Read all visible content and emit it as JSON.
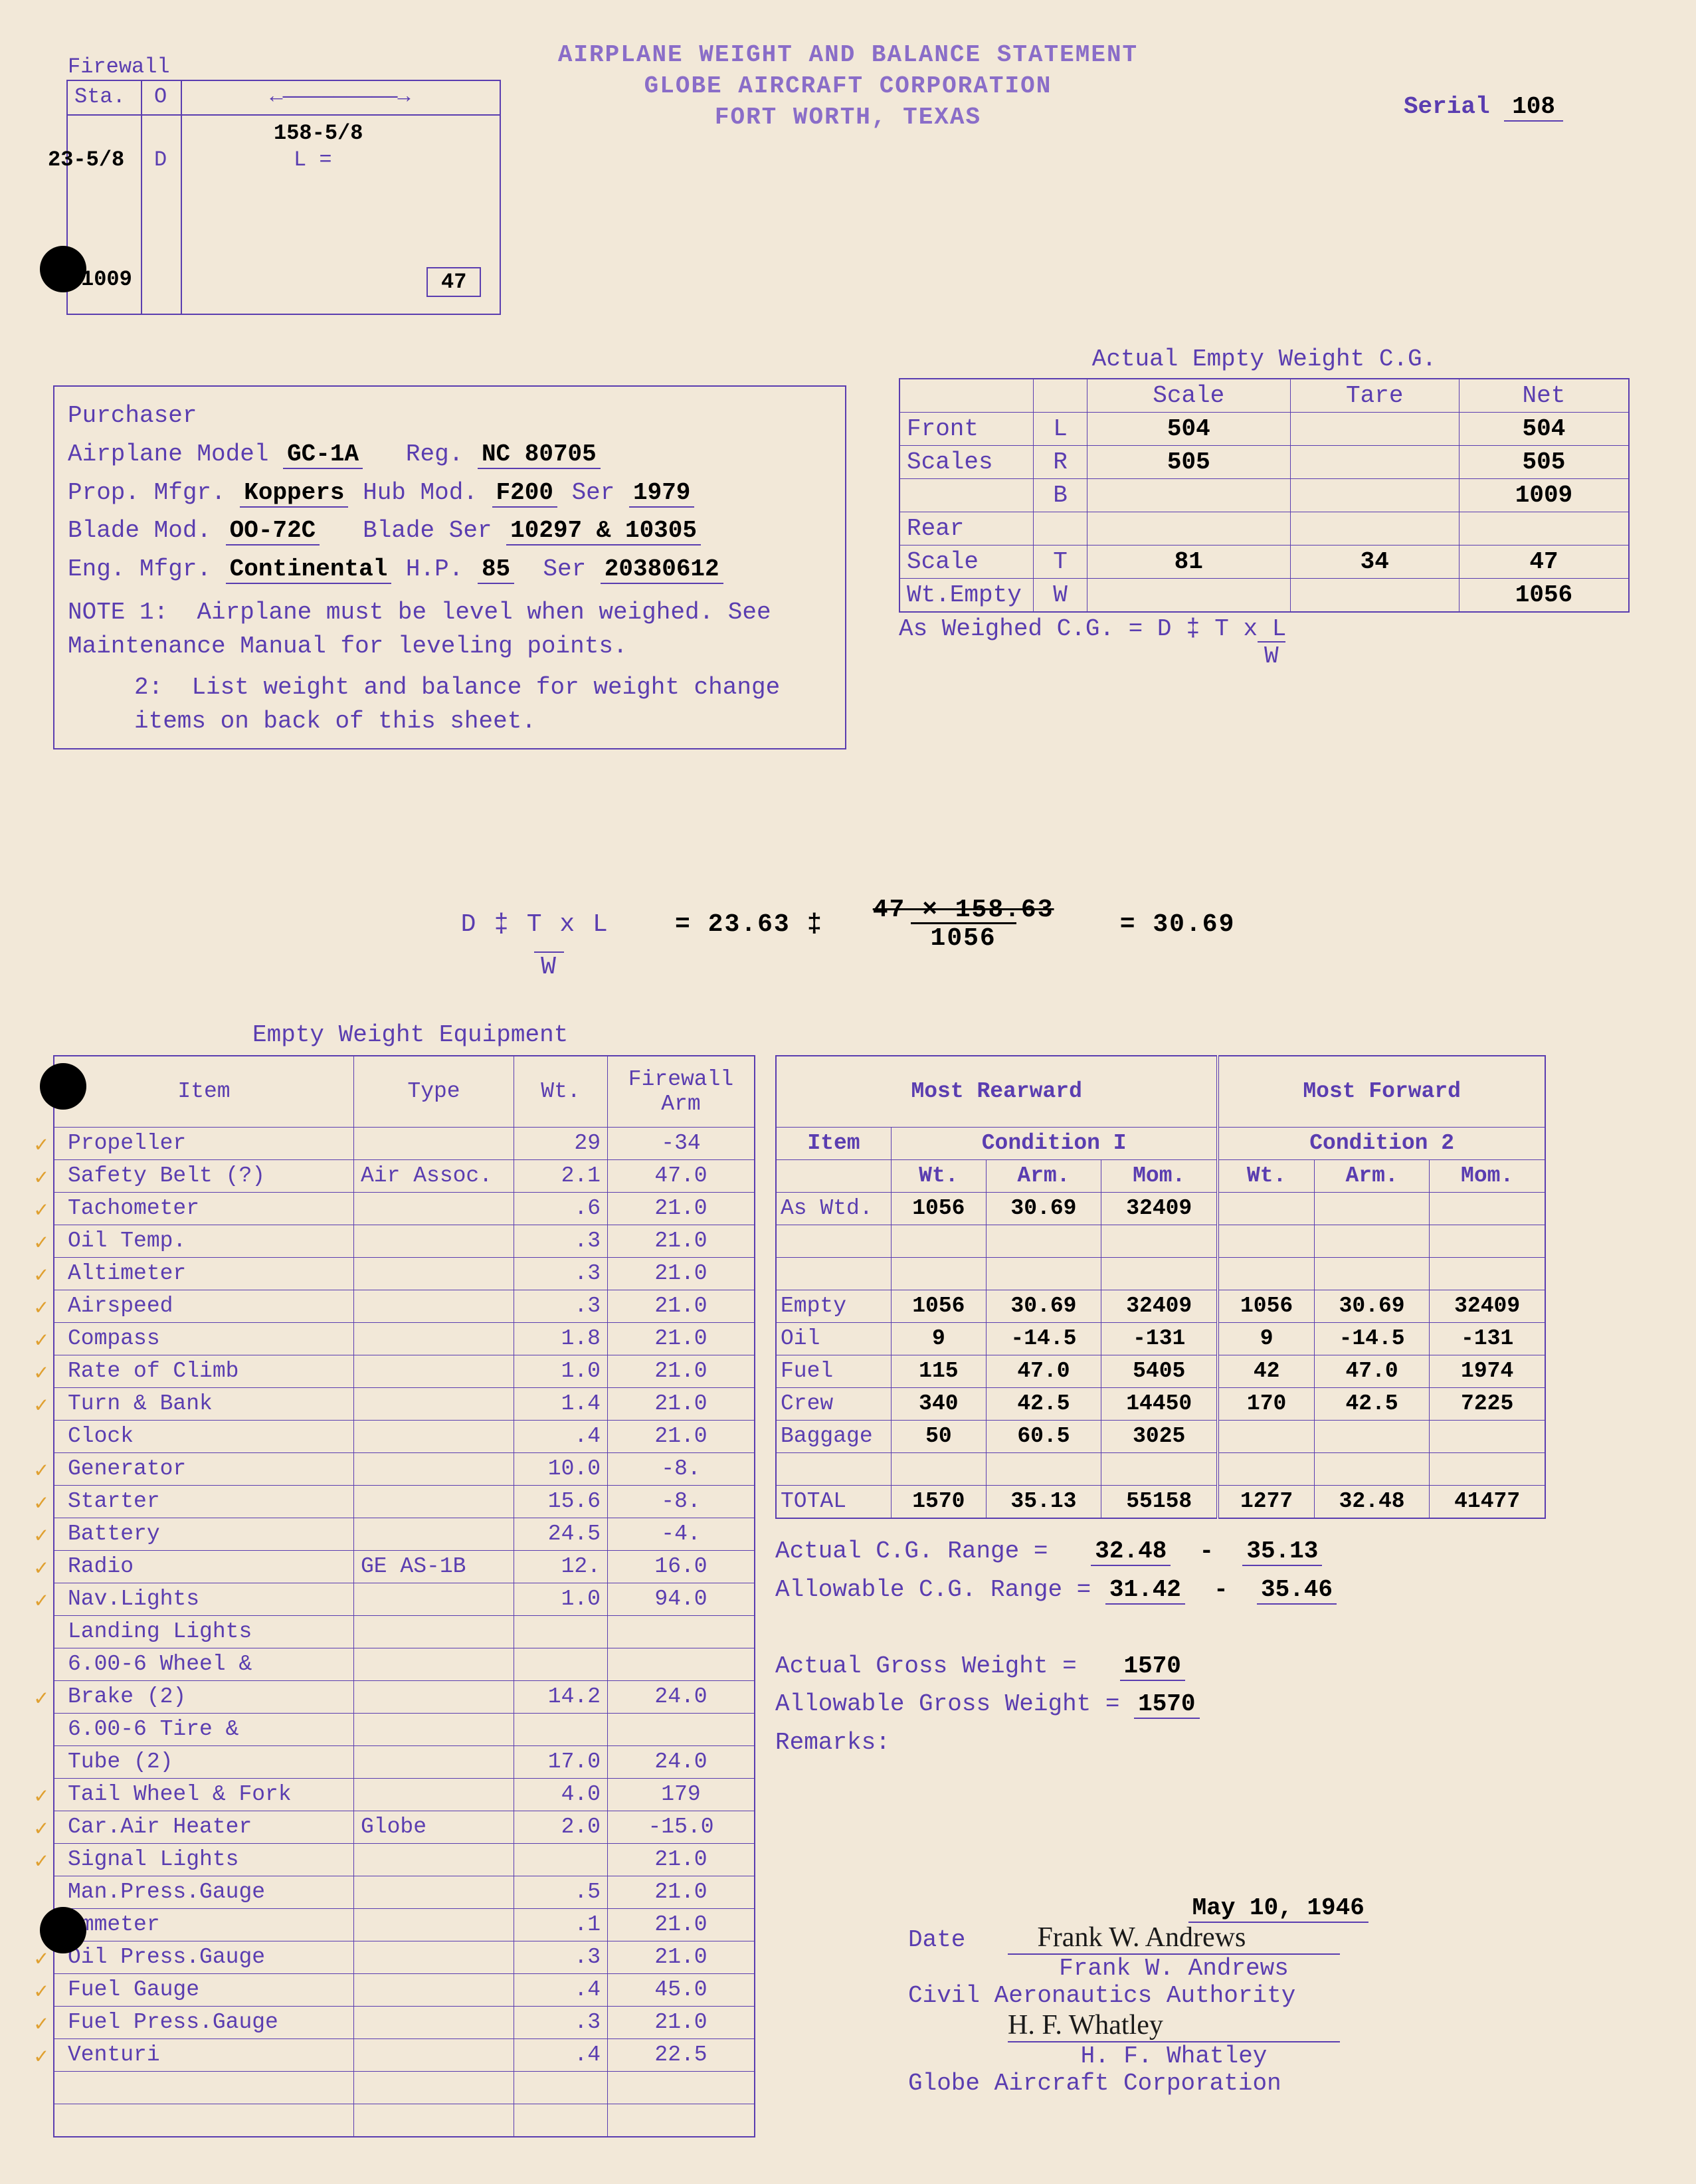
{
  "header": {
    "line1": "AIRPLANE WEIGHT AND BALANCE STATEMENT",
    "line2": "GLOBE AIRCRAFT CORPORATION",
    "line3": "FORT WORTH, TEXAS",
    "serial_label": "Serial",
    "serial": "108"
  },
  "firewall": {
    "label": "Firewall",
    "sta": "Sta.",
    "O": "O",
    "D": "D",
    "L": "L =",
    "d_val": "23-5/8",
    "l_val": "158-5/8",
    "wt1": "1009",
    "wt2": "47"
  },
  "purchaser": {
    "label": "Purchaser",
    "model_lbl": "Airplane Model",
    "model": "GC-1A",
    "reg_lbl": "Reg.",
    "reg": "NC 80705",
    "prop_lbl": "Prop. Mfgr.",
    "prop": "Koppers",
    "hub_lbl": "Hub Mod.",
    "hub": "F200",
    "ser_lbl": "Ser",
    "ser1": "1979",
    "blade_lbl": "Blade Mod.",
    "blade": "OO-72C",
    "bladeser_lbl": "Blade Ser",
    "bladeser": "10297 & 10305",
    "eng_lbl": "Eng. Mfgr.",
    "eng": "Continental",
    "hp_lbl": "H.P.",
    "hp": "85",
    "engser_lbl": "Ser",
    "engser": "20380612",
    "note1_lbl": "NOTE 1:",
    "note1": "Airplane must be level when weighed. See Maintenance Manual for leveling points.",
    "note2_lbl": "2:",
    "note2": "List weight and balance for weight change items on back of this sheet."
  },
  "actual_empty": {
    "title": "Actual Empty Weight C.G.",
    "cols": [
      "",
      "",
      "Scale",
      "Tare",
      "Net"
    ],
    "rows": [
      {
        "label": "Front",
        "sub": "L",
        "scale": "504",
        "tare": "",
        "net": "504"
      },
      {
        "label": "Scales",
        "sub": "R",
        "scale": "505",
        "tare": "",
        "net": "505"
      },
      {
        "label": "",
        "sub": "B",
        "scale": "",
        "tare": "",
        "net": "1009"
      },
      {
        "label": "Rear",
        "sub": "",
        "scale": "",
        "tare": "",
        "net": ""
      },
      {
        "label": "Scale",
        "sub": "T",
        "scale": "81",
        "tare": "34",
        "net": "47"
      },
      {
        "label": "Wt.Empty",
        "sub": "W",
        "scale": "",
        "tare": "",
        "net": "1056"
      }
    ],
    "asweighed": "As Weighed C.G.  = D ‡ T x L",
    "asweighed2": "W"
  },
  "formula": {
    "left": "D ‡ T x L",
    "left2": "W",
    "eq": "= 23.63   ‡",
    "frac_top": "47 × 158.63",
    "frac_bot": "1056",
    "result": "=  30.69"
  },
  "equipment": {
    "title": "Empty Weight Equipment",
    "headers": [
      "Item",
      "Type",
      "Wt.",
      "Firewall Arm"
    ],
    "rows": [
      {
        "c": true,
        "item": "Propeller",
        "type": "",
        "wt": "29",
        "arm": "-34"
      },
      {
        "c": true,
        "item": "Safety Belt (?)",
        "type": "Air Assoc.",
        "wt": "2.1",
        "arm": "47.0"
      },
      {
        "c": true,
        "item": "Tachometer",
        "type": "",
        "wt": ".6",
        "arm": "21.0"
      },
      {
        "c": true,
        "item": "Oil Temp.",
        "type": "",
        "wt": ".3",
        "arm": "21.0"
      },
      {
        "c": true,
        "item": "Altimeter",
        "type": "",
        "wt": ".3",
        "arm": "21.0"
      },
      {
        "c": true,
        "item": "Airspeed",
        "type": "",
        "wt": ".3",
        "arm": "21.0"
      },
      {
        "c": true,
        "item": "Compass",
        "type": "",
        "wt": "1.8",
        "arm": "21.0"
      },
      {
        "c": true,
        "item": "Rate of Climb",
        "type": "",
        "wt": "1.0",
        "arm": "21.0"
      },
      {
        "c": true,
        "item": "Turn & Bank",
        "type": "",
        "wt": "1.4",
        "arm": "21.0"
      },
      {
        "c": false,
        "item": "Clock",
        "type": "",
        "wt": ".4",
        "arm": "21.0"
      },
      {
        "c": true,
        "item": "Generator",
        "type": "",
        "wt": "10.0",
        "arm": "-8."
      },
      {
        "c": true,
        "item": "Starter",
        "type": "",
        "wt": "15.6",
        "arm": "-8."
      },
      {
        "c": true,
        "item": "Battery",
        "type": "",
        "wt": "24.5",
        "arm": "-4."
      },
      {
        "c": true,
        "item": "Radio",
        "type": "GE AS-1B",
        "wt": "12.",
        "arm": "16.0"
      },
      {
        "c": true,
        "item": "Nav.Lights",
        "type": "",
        "wt": "1.0",
        "arm": "94.0"
      },
      {
        "c": false,
        "item": "Landing Lights",
        "type": "",
        "wt": "",
        "arm": ""
      },
      {
        "c": false,
        "item": "6.00-6 Wheel &",
        "type": "",
        "wt": "",
        "arm": ""
      },
      {
        "c": true,
        "item": "  Brake (2)",
        "type": "",
        "wt": "14.2",
        "arm": "24.0"
      },
      {
        "c": false,
        "item": "6.00-6 Tire &",
        "type": "",
        "wt": "",
        "arm": ""
      },
      {
        "c": false,
        "item": "  Tube (2)",
        "type": "",
        "wt": "17.0",
        "arm": "24.0"
      },
      {
        "c": true,
        "item": "Tail Wheel & Fork",
        "type": "",
        "wt": "4.0",
        "arm": "179"
      },
      {
        "c": true,
        "item": "Car.Air Heater",
        "type": "Globe",
        "wt": "2.0",
        "arm": "-15.0"
      },
      {
        "c": true,
        "item": "Signal Lights",
        "type": "",
        "wt": "",
        "arm": "21.0"
      },
      {
        "c": false,
        "item": "Man.Press.Gauge",
        "type": "",
        "wt": ".5",
        "arm": "21.0"
      },
      {
        "c": false,
        "item": "Ammeter",
        "type": "",
        "wt": ".1",
        "arm": "21.0"
      },
      {
        "c": true,
        "item": "Oil Press.Gauge",
        "type": "",
        "wt": ".3",
        "arm": "21.0"
      },
      {
        "c": true,
        "item": "Fuel Gauge",
        "type": "",
        "wt": ".4",
        "arm": "45.0"
      },
      {
        "c": true,
        "item": "Fuel Press.Gauge",
        "type": "",
        "wt": ".3",
        "arm": "21.0"
      },
      {
        "c": true,
        "item": "Venturi",
        "type": "",
        "wt": ".4",
        "arm": "22.5"
      },
      {
        "c": false,
        "item": "",
        "type": "",
        "wt": "",
        "arm": ""
      },
      {
        "c": false,
        "item": "",
        "type": "",
        "wt": "",
        "arm": ""
      }
    ]
  },
  "conditions": {
    "most_rear": "Most Rearward",
    "most_fwd": "Most Forward",
    "item": "Item",
    "cond1": "Condition I",
    "cond2": "Condition 2",
    "sub": [
      "Wt.",
      "Arm.",
      "Mom.",
      "Wt.",
      "Arm.",
      "Mom."
    ],
    "rows": [
      {
        "lbl": "As Wtd.",
        "v": [
          "1056",
          "30.69",
          "32409",
          "",
          "",
          ""
        ]
      },
      {
        "lbl": "",
        "v": [
          "",
          "",
          "",
          "",
          "",
          ""
        ]
      },
      {
        "lbl": "",
        "v": [
          "",
          "",
          "",
          "",
          "",
          ""
        ]
      },
      {
        "lbl": "Empty",
        "v": [
          "1056",
          "30.69",
          "32409",
          "1056",
          "30.69",
          "32409"
        ]
      },
      {
        "lbl": "Oil",
        "v": [
          "9",
          "-14.5",
          "-131",
          "9",
          "-14.5",
          "-131"
        ]
      },
      {
        "lbl": "Fuel",
        "v": [
          "115",
          "47.0",
          "5405",
          "42",
          "47.0",
          "1974"
        ]
      },
      {
        "lbl": "Crew",
        "v": [
          "340",
          "42.5",
          "14450",
          "170",
          "42.5",
          "7225"
        ]
      },
      {
        "lbl": "Baggage",
        "v": [
          "50",
          "60.5",
          "3025",
          "",
          "",
          ""
        ]
      },
      {
        "lbl": "",
        "v": [
          "",
          "",
          "",
          "",
          "",
          ""
        ]
      },
      {
        "lbl": "TOTAL",
        "v": [
          "1570",
          "35.13",
          "55158",
          "1277",
          "32.48",
          "41477"
        ]
      }
    ],
    "actual_cg": "Actual C.G. Range =",
    "actual_cg_v1": "32.48",
    "actual_cg_dash": "-",
    "actual_cg_v2": "35.13",
    "allow_cg": "Allowable C.G. Range =",
    "allow_cg_v1": "31.42",
    "allow_cg_v2": "35.46",
    "actual_gw": "Actual Gross Weight =",
    "actual_gw_v": "1570",
    "allow_gw": "Allowable Gross Weight =",
    "allow_gw_v": "1570",
    "remarks": "Remarks:"
  },
  "signatures": {
    "date_lbl": "Date",
    "date": "May 10, 1946",
    "sig1": "Frank W. Andrews",
    "name1": "Frank W. Andrews",
    "org1": "Civil Aeronautics Authority",
    "sig2": "H. F. Whatley",
    "name2": "H. F. Whatley",
    "org2": "Globe Aircraft Corporation"
  }
}
